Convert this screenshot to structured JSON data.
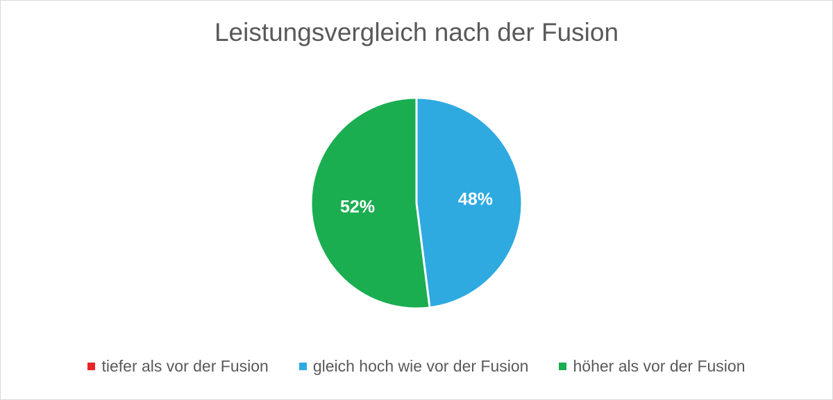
{
  "chart_data": {
    "type": "pie",
    "title": "Leistungsvergleich nach der Fusion",
    "categories": [
      "tiefer als vor der Fusion",
      "gleich hoch wie vor der Fusion",
      "höher als vor der Fusion"
    ],
    "values": [
      0,
      48,
      52
    ],
    "data_labels": [
      "",
      "48%",
      "52%"
    ],
    "colors": [
      "#e8252a",
      "#2eaae1",
      "#1aae51"
    ],
    "legend_position": "bottom"
  }
}
